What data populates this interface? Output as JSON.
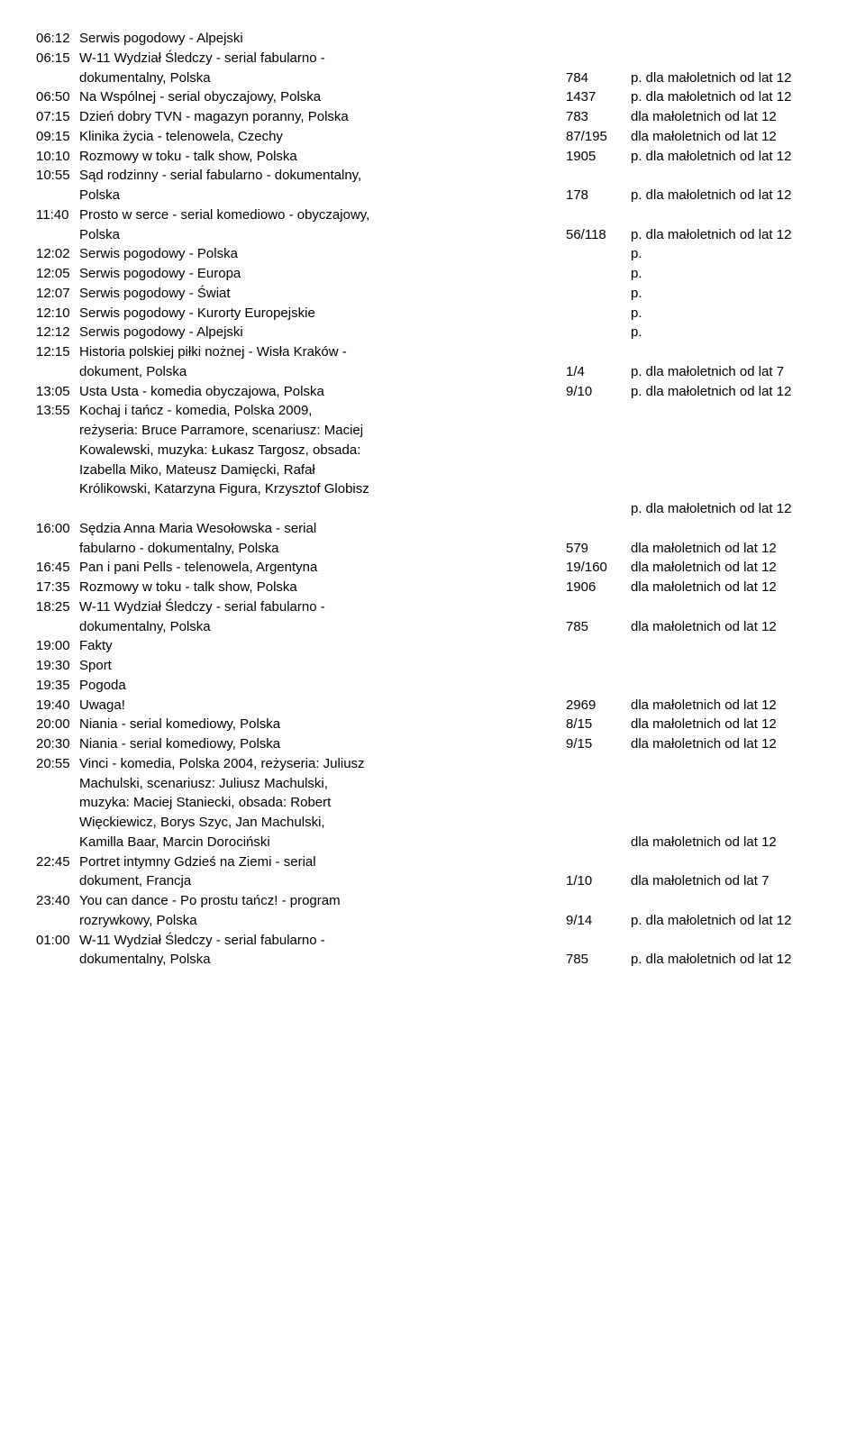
{
  "entries": [
    {
      "time": "06:12",
      "lines": [
        "Serwis pogodowy - Alpejski"
      ],
      "ep": "",
      "rating": ""
    },
    {
      "time": "06:15",
      "lines": [
        "W-11 Wydział Śledczy - serial fabularno -",
        "dokumentalny, Polska"
      ],
      "ep": "784",
      "rating": "p. dla małoletnich od lat 12"
    },
    {
      "time": "06:50",
      "lines": [
        "Na Wspólnej - serial obyczajowy, Polska"
      ],
      "ep": "1437",
      "rating": "p. dla małoletnich od lat 12"
    },
    {
      "time": "07:15",
      "lines": [
        "Dzień dobry TVN - magazyn poranny, Polska"
      ],
      "ep": "783",
      "rating": "dla małoletnich od lat 12"
    },
    {
      "time": "09:15",
      "lines": [
        "Klinika życia - telenowela, Czechy"
      ],
      "ep": "87/195",
      "rating": "dla małoletnich od lat 12"
    },
    {
      "time": "10:10",
      "lines": [
        "Rozmowy w toku - talk show, Polska"
      ],
      "ep": "1905",
      "rating": "p. dla małoletnich od lat 12"
    },
    {
      "time": "10:55",
      "lines": [
        "Sąd rodzinny - serial fabularno - dokumentalny,",
        "Polska"
      ],
      "ep": "178",
      "rating": "p. dla małoletnich od lat 12"
    },
    {
      "time": "11:40",
      "lines": [
        "Prosto w serce - serial komediowo - obyczajowy,",
        "Polska"
      ],
      "ep": "56/118",
      "rating": "p. dla małoletnich od lat 12"
    },
    {
      "time": "12:02",
      "lines": [
        "Serwis pogodowy - Polska"
      ],
      "ep": "",
      "rating": "p."
    },
    {
      "time": "12:05",
      "lines": [
        "Serwis pogodowy - Europa"
      ],
      "ep": "",
      "rating": "p."
    },
    {
      "time": "12:07",
      "lines": [
        "Serwis pogodowy - Świat"
      ],
      "ep": "",
      "rating": "p."
    },
    {
      "time": "12:10",
      "lines": [
        "Serwis pogodowy - Kurorty Europejskie"
      ],
      "ep": "",
      "rating": "p."
    },
    {
      "time": "12:12",
      "lines": [
        "Serwis pogodowy - Alpejski"
      ],
      "ep": "",
      "rating": "p."
    },
    {
      "time": "12:15",
      "lines": [
        "Historia polskiej piłki nożnej - Wisła Kraków -",
        "dokument, Polska"
      ],
      "ep": "1/4",
      "rating": "p. dla małoletnich od lat 7"
    },
    {
      "time": "13:05",
      "lines": [
        "Usta Usta - komedia obyczajowa, Polska"
      ],
      "ep": "9/10",
      "rating": "p. dla małoletnich od lat 12"
    },
    {
      "time": "13:55",
      "lines": [
        "Kochaj i tańcz - komedia, Polska 2009,",
        "reżyseria: Bruce Parramore, scenariusz: Maciej",
        "Kowalewski, muzyka: Łukasz Targosz, obsada:",
        "Izabella Miko, Mateusz Damięcki, Rafał",
        "Królikowski, Katarzyna Figura, Krzysztof Globisz"
      ],
      "ep": "",
      "rating": "p. dla małoletnich od lat 12",
      "rating_after": true
    },
    {
      "time": "16:00",
      "lines": [
        "Sędzia Anna Maria Wesołowska - serial",
        "fabularno - dokumentalny, Polska"
      ],
      "ep": "579",
      "rating": "dla małoletnich od lat 12"
    },
    {
      "time": "16:45",
      "lines": [
        "Pan i pani Pells - telenowela, Argentyna"
      ],
      "ep": "19/160",
      "rating": "dla małoletnich od lat 12"
    },
    {
      "time": "17:35",
      "lines": [
        "Rozmowy w toku - talk show, Polska"
      ],
      "ep": "1906",
      "rating": "dla małoletnich od lat 12"
    },
    {
      "time": "18:25",
      "lines": [
        "W-11 Wydział Śledczy - serial fabularno -",
        "dokumentalny, Polska"
      ],
      "ep": "785",
      "rating": "dla małoletnich od lat 12"
    },
    {
      "time": "19:00",
      "lines": [
        "Fakty"
      ],
      "ep": "",
      "rating": ""
    },
    {
      "time": "19:30",
      "lines": [
        "Sport"
      ],
      "ep": "",
      "rating": ""
    },
    {
      "time": "19:35",
      "lines": [
        "Pogoda"
      ],
      "ep": "",
      "rating": ""
    },
    {
      "time": "19:40",
      "lines": [
        "Uwaga!"
      ],
      "ep": "2969",
      "rating": "dla małoletnich od lat 12"
    },
    {
      "time": "20:00",
      "lines": [
        "Niania - serial komediowy, Polska"
      ],
      "ep": "8/15",
      "rating": "dla małoletnich od lat 12"
    },
    {
      "time": "20:30",
      "lines": [
        "Niania - serial komediowy, Polska"
      ],
      "ep": "9/15",
      "rating": "dla małoletnich od lat 12"
    },
    {
      "time": "20:55",
      "lines": [
        "Vinci - komedia, Polska 2004, reżyseria: Juliusz",
        "Machulski, scenariusz: Juliusz Machulski,",
        "muzyka: Maciej Staniecki, obsada: Robert",
        "Więckiewicz, Borys Szyc, Jan Machulski,",
        "Kamilla Baar, Marcin Dorociński"
      ],
      "ep": "",
      "rating": "dla małoletnich od lat 12"
    },
    {
      "time": "22:45",
      "lines": [
        "Portret intymny Gdzieś na Ziemi - serial",
        "dokument, Francja"
      ],
      "ep": "1/10",
      "rating": "dla małoletnich od lat 7"
    },
    {
      "time": "23:40",
      "lines": [
        "You can dance - Po prostu tańcz! - program",
        "rozrywkowy, Polska"
      ],
      "ep": "9/14",
      "rating": "p. dla małoletnich od lat 12"
    },
    {
      "time": "01:00",
      "lines": [
        "W-11 Wydział Śledczy - serial fabularno -",
        "dokumentalny, Polska"
      ],
      "ep": "785",
      "rating": "p. dla małoletnich od lat 12"
    }
  ]
}
